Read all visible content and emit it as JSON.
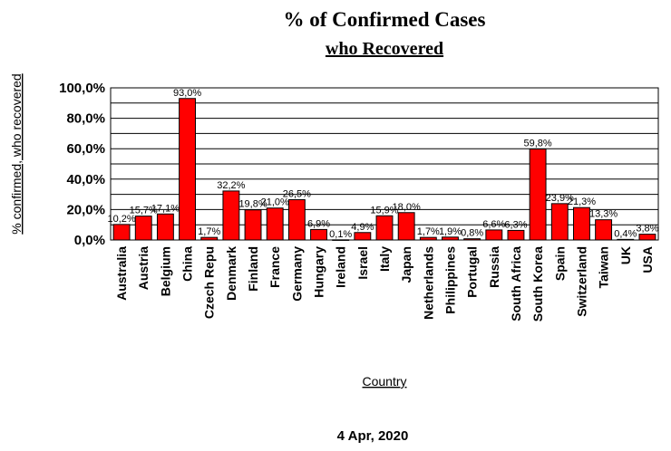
{
  "chart_data": {
    "type": "bar",
    "title": "% of Confirmed Cases",
    "subtitle": "who Recovered",
    "xlabel": "Country",
    "ylabel": "% confirmed, who recovered",
    "ylim": [
      0,
      100
    ],
    "yticks": [
      "0,0%",
      "20,0%",
      "40,0%",
      "60,0%",
      "80,0%",
      "100,0%"
    ],
    "categories": [
      "Australia",
      "Austria",
      "Belgium",
      "China",
      "Czech Repu",
      "Denmark",
      "Finland",
      "France",
      "Germany",
      "Hungary",
      "Ireland",
      "Israel",
      "Italy",
      "Japan",
      "Netherlands",
      "Philippines",
      "Portugal",
      "Russia",
      "South Africa",
      "South Korea",
      "Spain",
      "Switzerland",
      "Taiwan",
      "UK",
      "USA"
    ],
    "values": [
      10.2,
      15.7,
      17.1,
      93.0,
      1.7,
      32.2,
      19.8,
      21.0,
      26.5,
      6.9,
      0.1,
      4.9,
      15.9,
      18.0,
      1.7,
      1.9,
      0.8,
      6.6,
      6.3,
      59.8,
      23.9,
      21.3,
      13.3,
      0.4,
      3.8
    ],
    "labels": [
      "10,2%",
      "15,7%",
      "17,1%",
      "93,0%",
      "1,7%",
      "32,2%",
      "19,8%",
      "21,0%",
      "26,5%",
      "6,9%",
      "0,1%",
      "4,9%",
      "15,9%",
      "18,0%",
      "1,7%",
      "1,9%",
      "0,8%",
      "6,6%",
      "6,3%",
      "59,8%",
      "23,9%",
      "21,3%",
      "13,3%",
      "0,4%",
      "3,8%"
    ],
    "bar_color": "#ff0000",
    "grid": true,
    "footer": "4 Apr, 2020"
  }
}
